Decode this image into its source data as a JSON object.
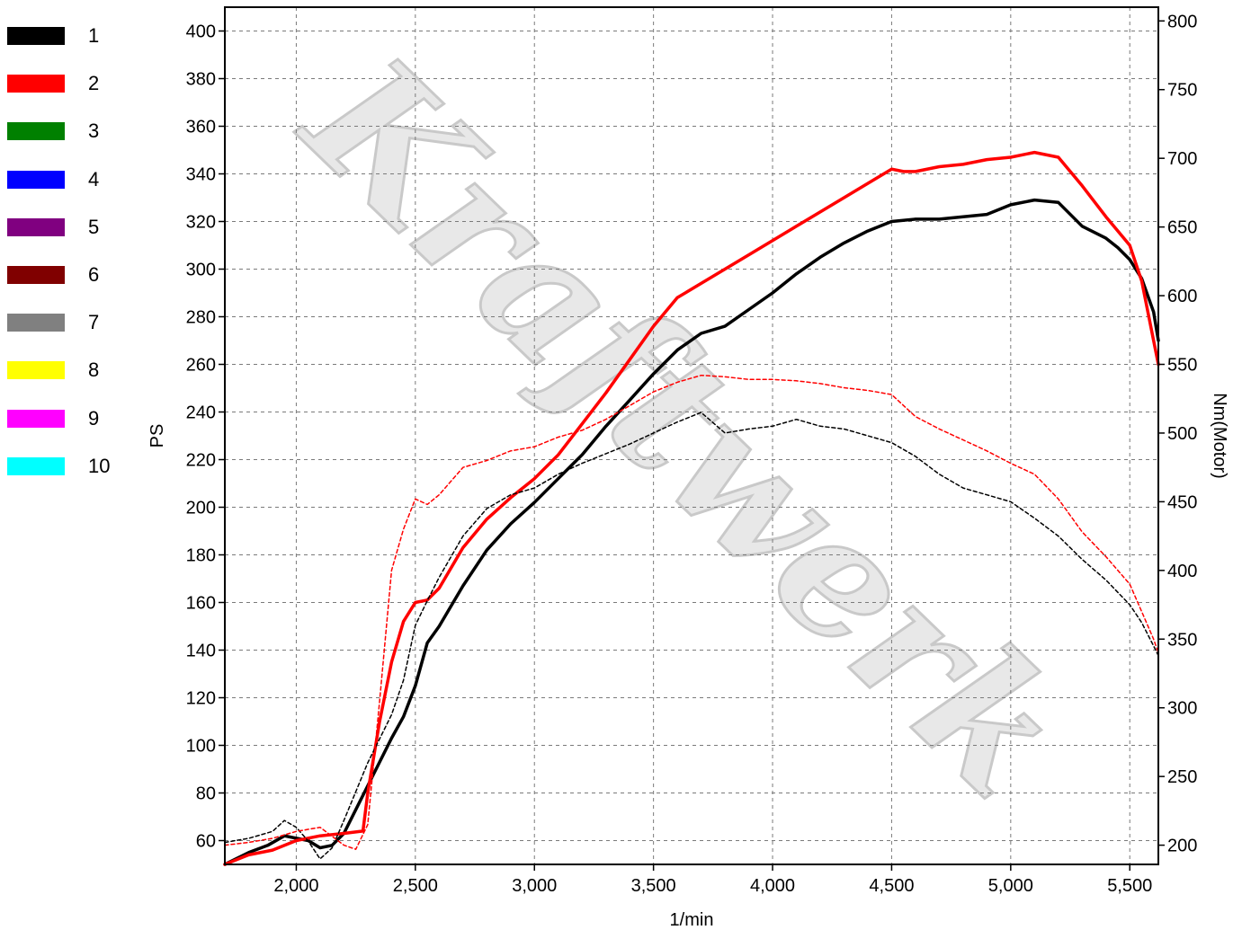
{
  "watermark": "Kraftwerk",
  "legend": [
    {
      "label": "1",
      "color": "#000000"
    },
    {
      "label": "2",
      "color": "#ff0000"
    },
    {
      "label": "3",
      "color": "#008000"
    },
    {
      "label": "4",
      "color": "#0000ff"
    },
    {
      "label": "5",
      "color": "#800080"
    },
    {
      "label": "6",
      "color": "#800000"
    },
    {
      "label": "7",
      "color": "#808080"
    },
    {
      "label": "8",
      "color": "#ffff00"
    },
    {
      "label": "9",
      "color": "#ff00ff"
    },
    {
      "label": "10",
      "color": "#00ffff"
    }
  ],
  "chart_data": {
    "type": "line",
    "xlabel": "1/min",
    "ylabel": "PS",
    "y2label": "Nm(Motor)",
    "xlim": [
      1700,
      5620
    ],
    "ylim": [
      50,
      410
    ],
    "y2lim": [
      186,
      810
    ],
    "xticks": [
      2000,
      2500,
      3000,
      3500,
      4000,
      4500,
      5000,
      5500
    ],
    "xtick_labels": [
      "2,000",
      "2,500",
      "3,000",
      "3,500",
      "4,000",
      "4,500",
      "5,000",
      "5,500"
    ],
    "yticks": [
      60,
      80,
      100,
      120,
      140,
      160,
      180,
      200,
      220,
      240,
      260,
      280,
      300,
      320,
      340,
      360,
      380,
      400
    ],
    "ytick_labels": [
      "60",
      "80",
      "100",
      "120",
      "140",
      "160",
      "180",
      "200",
      "220",
      "240",
      "260",
      "280",
      "300",
      "320",
      "340",
      "360",
      "380",
      "400"
    ],
    "y2ticks": [
      200,
      250,
      300,
      350,
      400,
      450,
      500,
      550,
      600,
      650,
      700,
      750,
      800
    ],
    "y2tick_labels": [
      "200",
      "250",
      "300",
      "350",
      "400",
      "450",
      "500",
      "550",
      "600",
      "650",
      "700",
      "750",
      "800"
    ],
    "grid": true,
    "series": [
      {
        "name": "1",
        "axis": "left",
        "style": "solid",
        "color": "#000000",
        "x": [
          1700,
          1800,
          1880,
          1950,
          2000,
          2050,
          2100,
          2150,
          2200,
          2300,
          2400,
          2450,
          2500,
          2550,
          2600,
          2700,
          2800,
          2900,
          3000,
          3100,
          3200,
          3300,
          3400,
          3500,
          3600,
          3700,
          3800,
          3900,
          4000,
          4100,
          4200,
          4300,
          4400,
          4500,
          4600,
          4700,
          4800,
          4900,
          5000,
          5100,
          5200,
          5300,
          5400,
          5450,
          5500,
          5550,
          5600,
          5620
        ],
        "y": [
          50,
          55,
          58,
          62,
          61,
          60,
          57,
          58,
          63,
          83,
          103,
          112,
          125,
          143,
          150,
          167,
          182,
          193,
          202,
          212,
          222,
          234,
          245,
          256,
          266,
          273,
          276,
          283,
          290,
          298,
          305,
          311,
          316,
          320,
          321,
          321,
          322,
          323,
          327,
          329,
          328,
          318,
          313,
          309,
          304,
          296,
          282,
          270
        ]
      },
      {
        "name": "2",
        "axis": "left",
        "style": "solid",
        "color": "#ff0000",
        "x": [
          1700,
          1800,
          1900,
          2000,
          2100,
          2200,
          2280,
          2300,
          2350,
          2400,
          2450,
          2500,
          2550,
          2600,
          2700,
          2800,
          2900,
          3000,
          3100,
          3200,
          3300,
          3400,
          3500,
          3600,
          3700,
          3800,
          3900,
          4000,
          4100,
          4200,
          4300,
          4400,
          4500,
          4550,
          4600,
          4700,
          4800,
          4900,
          5000,
          5100,
          5200,
          5300,
          5400,
          5500,
          5550,
          5600,
          5620
        ],
        "y": [
          50,
          54,
          56,
          60,
          62,
          63,
          64,
          80,
          110,
          135,
          152,
          160,
          161,
          166,
          183,
          195,
          204,
          212,
          222,
          235,
          248,
          262,
          276,
          288,
          294,
          300,
          306,
          312,
          318,
          324,
          330,
          336,
          342,
          341,
          341,
          343,
          344,
          346,
          347,
          349,
          347,
          335,
          322,
          310,
          295,
          270,
          260
        ]
      },
      {
        "name": "1",
        "axis": "right",
        "style": "dashed",
        "color": "#000000",
        "x": [
          1700,
          1800,
          1900,
          1950,
          2000,
          2050,
          2100,
          2150,
          2200,
          2300,
          2400,
          2450,
          2500,
          2550,
          2600,
          2700,
          2800,
          2900,
          3000,
          3100,
          3200,
          3300,
          3400,
          3500,
          3600,
          3700,
          3800,
          3900,
          4000,
          4100,
          4200,
          4300,
          4400,
          4500,
          4600,
          4700,
          4800,
          4900,
          5000,
          5100,
          5200,
          5300,
          5400,
          5500,
          5550,
          5600,
          5620
        ],
        "y": [
          202,
          205,
          210,
          218,
          213,
          203,
          190,
          198,
          218,
          260,
          295,
          320,
          360,
          378,
          395,
          425,
          445,
          455,
          460,
          470,
          478,
          485,
          492,
          500,
          508,
          515,
          500,
          503,
          505,
          510,
          505,
          503,
          498,
          493,
          483,
          470,
          460,
          455,
          450,
          438,
          425,
          408,
          393,
          375,
          362,
          345,
          338
        ]
      },
      {
        "name": "2",
        "axis": "right",
        "style": "dashed",
        "color": "#ff0000",
        "x": [
          1700,
          1800,
          1900,
          2000,
          2100,
          2200,
          2250,
          2300,
          2350,
          2400,
          2450,
          2500,
          2550,
          2600,
          2700,
          2800,
          2900,
          3000,
          3100,
          3200,
          3300,
          3400,
          3500,
          3600,
          3700,
          3800,
          3900,
          4000,
          4100,
          4200,
          4300,
          4400,
          4500,
          4600,
          4700,
          4800,
          4900,
          5000,
          5100,
          5200,
          5300,
          5400,
          5500,
          5550,
          5600,
          5620
        ],
        "y": [
          200,
          202,
          205,
          210,
          213,
          200,
          197,
          215,
          305,
          400,
          430,
          452,
          448,
          455,
          475,
          480,
          487,
          490,
          497,
          502,
          510,
          520,
          530,
          537,
          542,
          541,
          539,
          539,
          538,
          536,
          533,
          531,
          528,
          512,
          503,
          495,
          487,
          478,
          470,
          452,
          428,
          410,
          390,
          370,
          350,
          340
        ]
      }
    ]
  }
}
